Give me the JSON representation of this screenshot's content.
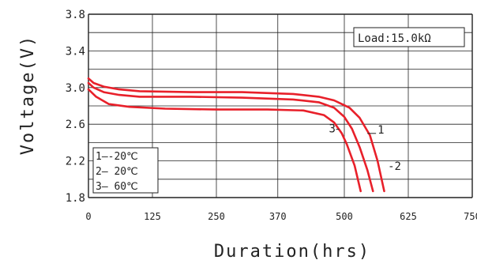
{
  "chart_data": {
    "type": "line",
    "xlabel": "Duration(hrs)",
    "ylabel": "Voltage(V)",
    "xlim": [
      0,
      750
    ],
    "ylim": [
      1.8,
      3.8
    ],
    "x_ticks": [
      0,
      125,
      250,
      370,
      500,
      625,
      750
    ],
    "x_tick_labels": [
      "0",
      "125",
      "250",
      "370",
      "500",
      "625",
      "750"
    ],
    "y_ticks": [
      1.8,
      2.2,
      2.6,
      3.0,
      3.4,
      3.8
    ],
    "y_tick_labels": [
      "1.8",
      "2.2",
      "2.6",
      "3.0",
      "3.4",
      "3.8"
    ],
    "grid": true,
    "load_label": "Load:15.0kΩ",
    "legend": [
      "1—-20℃",
      "2— 20℃",
      "3— 60℃"
    ],
    "curve_color": "#e8202a",
    "series": [
      {
        "name": "1",
        "x": [
          0,
          10,
          30,
          60,
          100,
          200,
          300,
          400,
          450,
          480,
          500,
          515,
          530,
          545,
          556
        ],
        "y": [
          3.05,
          3.0,
          2.95,
          2.92,
          2.9,
          2.9,
          2.89,
          2.87,
          2.84,
          2.78,
          2.68,
          2.55,
          2.35,
          2.1,
          1.87
        ]
      },
      {
        "name": "2",
        "x": [
          0,
          10,
          30,
          60,
          100,
          200,
          300,
          400,
          450,
          480,
          510,
          530,
          550,
          565,
          578
        ],
        "y": [
          3.1,
          3.05,
          3.01,
          2.98,
          2.96,
          2.95,
          2.95,
          2.93,
          2.9,
          2.86,
          2.78,
          2.67,
          2.48,
          2.2,
          1.87
        ]
      },
      {
        "name": "3",
        "x": [
          0,
          15,
          40,
          80,
          150,
          250,
          350,
          420,
          460,
          480,
          495,
          505,
          520,
          532
        ],
        "y": [
          2.98,
          2.9,
          2.82,
          2.79,
          2.77,
          2.76,
          2.76,
          2.75,
          2.7,
          2.62,
          2.5,
          2.38,
          2.15,
          1.87
        ]
      }
    ],
    "annotations": [
      {
        "text": "1",
        "x": 565,
        "y": 2.5,
        "from": [
          545,
          2.5
        ]
      },
      {
        "text": "-2",
        "x": 585,
        "y": 2.1
      },
      {
        "text": "3",
        "x": 470,
        "y": 2.51,
        "to": [
          490,
          2.51
        ]
      }
    ]
  }
}
